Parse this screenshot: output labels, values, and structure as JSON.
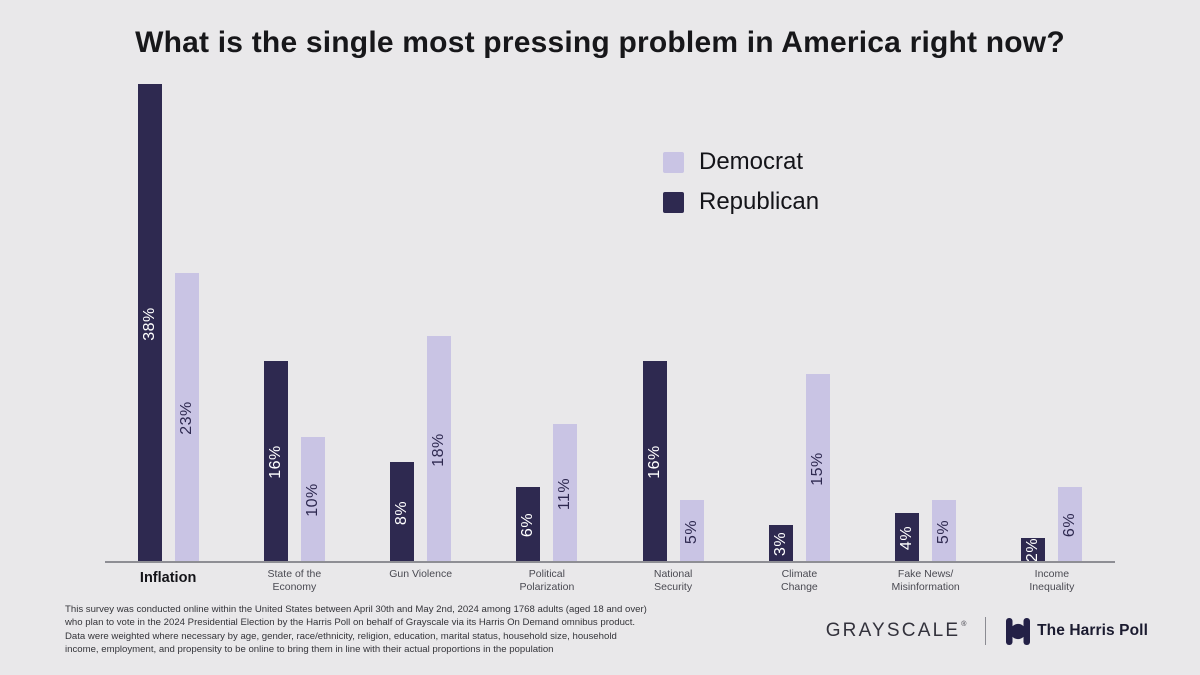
{
  "page": {
    "background_color": "#e9e8ea",
    "accent_dark": "#2e2950",
    "accent_light": "#c9c4e4"
  },
  "chart_data": {
    "type": "bar",
    "title": "What is the single most pressing problem in America right now?",
    "categories": [
      "Inflation",
      "State of the Economy",
      "Gun Violence",
      "Political Polarization",
      "National Security",
      "Climate Change",
      "Fake News/Misinformation",
      "Income Inequality"
    ],
    "category_label_lines": [
      [
        "Inflation"
      ],
      [
        "State of the",
        "Economy"
      ],
      [
        "Gun Violence"
      ],
      [
        "Political",
        "Polarization"
      ],
      [
        "National",
        "Security"
      ],
      [
        "Climate",
        "Change"
      ],
      [
        "Fake News/",
        "Misinformation"
      ],
      [
        "Income",
        "Inequality"
      ]
    ],
    "highlighted_category": "Inflation",
    "series": [
      {
        "name": "Republican",
        "color": "#2e2950",
        "label_color": "#ffffff",
        "values": [
          38,
          16,
          8,
          6,
          16,
          3,
          4,
          2
        ]
      },
      {
        "name": "Democrat",
        "color": "#c9c4e4",
        "label_color": "#2e2950",
        "values": [
          23,
          10,
          18,
          11,
          5,
          15,
          5,
          6
        ]
      }
    ],
    "value_suffix": "%",
    "ylim": [
      0,
      40
    ],
    "grid": false,
    "legend_order": [
      "Democrat",
      "Republican"
    ],
    "legend_position": "upper-middle",
    "axis_line_color": "#8e8e94",
    "value_labels": "inside-rotated"
  },
  "footnote": {
    "lines": [
      "This survey was conducted online within the United States between April 30th and May 2nd, 2024 among 1768 adults (aged 18 and over)",
      "who plan to vote in the 2024 Presidential Election by the Harris Poll on behalf of Grayscale via its Harris On Demand omnibus product.",
      "Data were weighted where necessary by age, gender, race/ethnicity, religion, education, marital status, household size, household",
      "income, employment, and propensity to be online to bring them in line with their actual proportions in the population"
    ]
  },
  "footer": {
    "grayscale_logo_text": "GRAYSCALE",
    "grayscale_trademark": "®",
    "harris_poll_text": "The Harris Poll"
  }
}
